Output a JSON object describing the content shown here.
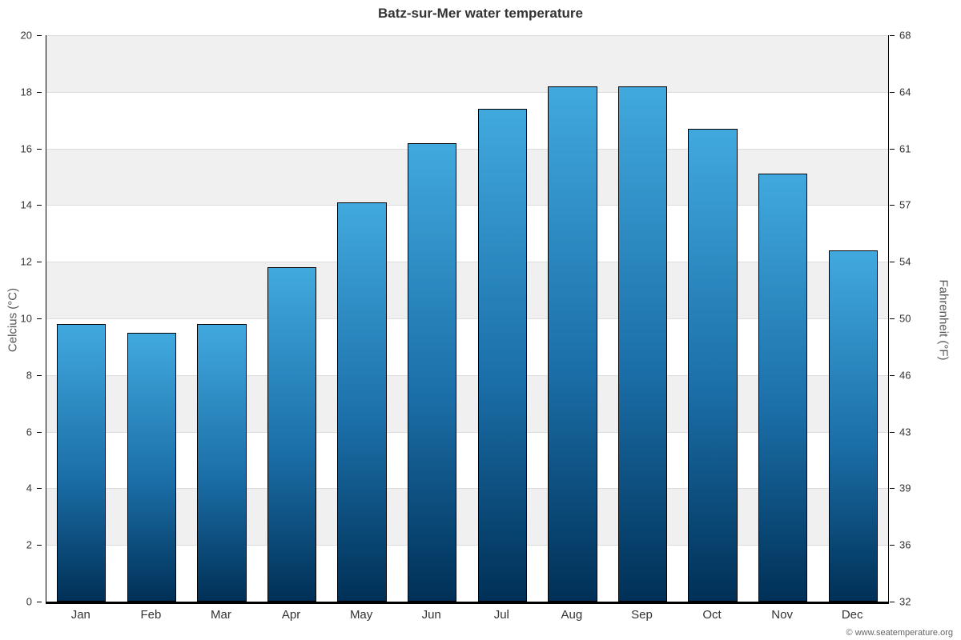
{
  "chart": {
    "title": "Batz-sur-Mer water temperature",
    "y_left_title": "Celcius (°C)",
    "y_right_title": "Fahrenheit (°F)",
    "copyright": "© www.seatemperature.org"
  },
  "chart_data": {
    "type": "bar",
    "title": "Batz-sur-Mer water temperature",
    "categories": [
      "Jan",
      "Feb",
      "Mar",
      "Apr",
      "May",
      "Jun",
      "Jul",
      "Aug",
      "Sep",
      "Oct",
      "Nov",
      "Dec"
    ],
    "values": [
      9.8,
      9.5,
      9.8,
      11.8,
      14.1,
      16.2,
      17.4,
      18.2,
      18.2,
      16.7,
      15.1,
      12.4
    ],
    "xlabel": "",
    "ylabel_left": "Celcius (°C)",
    "ylabel_right": "Fahrenheit (°F)",
    "ylim_left": [
      0,
      20
    ],
    "ylim_right": [
      32,
      68
    ],
    "y_ticks_left": [
      0,
      2,
      4,
      6,
      8,
      10,
      12,
      14,
      16,
      18,
      20
    ],
    "y_ticks_right": [
      32,
      36,
      39,
      43,
      46,
      50,
      54,
      57,
      61,
      64,
      68
    ],
    "grid": true,
    "legend": "none",
    "band_color": "#f0f0f0",
    "gridline_color": "#dcdcdc",
    "bar_gradient_top": "#41a9de",
    "bar_gradient_mid": "#1b6fa8",
    "bar_gradient_bottom": "#003057",
    "bar_width_fraction": 0.7
  }
}
